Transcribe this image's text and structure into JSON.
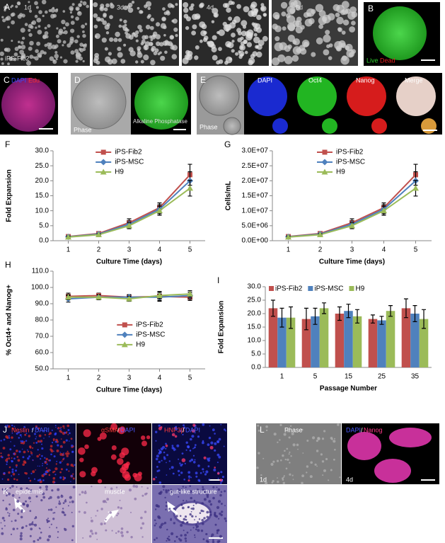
{
  "panels": {
    "A": {
      "label": "A",
      "captions": [
        "1d",
        "3d",
        "4d",
        "5d",
        "iPS-Fib2"
      ]
    },
    "B": {
      "label": "B",
      "captions": [
        "Live",
        "Dead"
      ]
    },
    "C": {
      "label": "C",
      "captions": [
        "DAPI",
        "Edu"
      ]
    },
    "D": {
      "label": "D",
      "captions": [
        "Phase",
        "Alkaline Phosphatase"
      ]
    },
    "E": {
      "label": "E",
      "captions": [
        "Phase",
        "DAPI",
        "Oct4",
        "Nanog",
        "Merge"
      ]
    },
    "J": {
      "label": "J",
      "captions": [
        "Nestin",
        "/",
        "DAPI",
        "αSMA",
        "/",
        "DAPI",
        "HNF3β",
        "/",
        "DAPI"
      ]
    },
    "K": {
      "label": "K",
      "captions": [
        "epidermis",
        "muscle",
        "gut-like structure"
      ]
    },
    "L": {
      "label": "L",
      "captions": [
        "Phase",
        "1d",
        "DAPI",
        "/",
        "Nanog",
        "4d"
      ]
    }
  },
  "chart_data": [
    {
      "type": "line",
      "panel": "F",
      "y_label": "Fold Expansion",
      "x_label": "Culture Time (days)",
      "x": [
        1,
        2,
        3,
        4,
        5
      ],
      "xlim": [
        0.5,
        5.5
      ],
      "xticks": [
        1,
        2,
        3,
        4,
        5
      ],
      "ylim": [
        0,
        30
      ],
      "yticks": [
        {
          "value": 0,
          "label": "0.0"
        },
        {
          "value": 5,
          "label": "5.0"
        },
        {
          "value": 10,
          "label": "10.0"
        },
        {
          "value": 15,
          "label": "15.0"
        },
        {
          "value": 20,
          "label": "20.0"
        },
        {
          "value": 25,
          "label": "25.0"
        },
        {
          "value": 30,
          "label": "30.0"
        }
      ],
      "grid": false,
      "legend": "upper center",
      "series": [
        {
          "name": "iPS-Fib2",
          "color": "#c0504d",
          "marker": "square",
          "values": [
            1.4,
            2.4,
            6.0,
            11.0,
            22.0
          ],
          "errors": [
            0.3,
            0.3,
            1.3,
            1.6,
            3.5
          ]
        },
        {
          "name": "iPS-MSC",
          "color": "#4f81bd",
          "marker": "diamond",
          "values": [
            1.3,
            2.2,
            5.5,
            10.5,
            20.0
          ],
          "errors": [
            0.3,
            0.3,
            1.1,
            1.5,
            3.0
          ]
        },
        {
          "name": "H9",
          "color": "#9bbb59",
          "marker": "triangle",
          "values": [
            1.2,
            2.0,
            5.0,
            10.0,
            17.5
          ],
          "errors": [
            0.3,
            0.3,
            1.0,
            1.5,
            2.6
          ]
        }
      ]
    },
    {
      "type": "line",
      "panel": "G",
      "y_label": "Cells/mL",
      "x_label": "Culture Time (days)",
      "x": [
        1,
        2,
        3,
        4,
        5
      ],
      "xlim": [
        0.5,
        5.5
      ],
      "xticks": [
        1,
        2,
        3,
        4,
        5
      ],
      "ylim": [
        0,
        30000000
      ],
      "yticks": [
        {
          "value": 0,
          "label": "0.0E+00"
        },
        {
          "value": 5000000,
          "label": "5.0E+06"
        },
        {
          "value": 10000000,
          "label": "1.0E+07"
        },
        {
          "value": 15000000,
          "label": "1.5E+07"
        },
        {
          "value": 20000000,
          "label": "2.0E+07"
        },
        {
          "value": 25000000,
          "label": "2.5E+07"
        },
        {
          "value": 30000000,
          "label": "3.0E+07"
        }
      ],
      "grid": false,
      "legend": "upper center",
      "series": [
        {
          "name": "iPS-Fib2",
          "color": "#c0504d",
          "marker": "square",
          "values": [
            1400000,
            2400000,
            6000000,
            11000000,
            22000000
          ],
          "errors": [
            300000,
            300000,
            1300000,
            1600000,
            3500000
          ]
        },
        {
          "name": "iPS-MSC",
          "color": "#4f81bd",
          "marker": "diamond",
          "values": [
            1300000,
            2200000,
            5500000,
            10500000,
            20000000
          ],
          "errors": [
            300000,
            300000,
            1100000,
            1500000,
            3000000
          ]
        },
        {
          "name": "H9",
          "color": "#9bbb59",
          "marker": "triangle",
          "values": [
            1200000,
            2000000,
            5000000,
            10000000,
            17500000
          ],
          "errors": [
            300000,
            300000,
            1000000,
            1500000,
            2600000
          ]
        }
      ]
    },
    {
      "type": "line",
      "panel": "H",
      "y_label": "% Oct4+ and Nanog+",
      "x_label": "Culture Time (days)",
      "x": [
        1,
        2,
        3,
        4,
        5
      ],
      "xlim": [
        0.5,
        5.5
      ],
      "xticks": [
        1,
        2,
        3,
        4,
        5
      ],
      "ylim": [
        50,
        110
      ],
      "yticks": [
        {
          "value": 50,
          "label": "50.0"
        },
        {
          "value": 60,
          "label": "60.0"
        },
        {
          "value": 70,
          "label": "70.0"
        },
        {
          "value": 80,
          "label": "80.0"
        },
        {
          "value": 90,
          "label": "90.0"
        },
        {
          "value": 100,
          "label": "100.0"
        },
        {
          "value": 110,
          "label": "110.0"
        }
      ],
      "grid": false,
      "legend": "center",
      "series": [
        {
          "name": "iPS-Fib2",
          "color": "#c0504d",
          "marker": "square",
          "values": [
            94.5,
            95.0,
            94.0,
            94.5,
            94.0
          ],
          "errors": [
            2.0,
            1.5,
            1.5,
            3.0,
            2.0
          ]
        },
        {
          "name": "iPS-MSC",
          "color": "#4f81bd",
          "marker": "diamond",
          "values": [
            93.0,
            94.0,
            94.0,
            94.0,
            95.0
          ],
          "errors": [
            2.0,
            1.5,
            1.5,
            2.0,
            2.0
          ]
        },
        {
          "name": "H9",
          "color": "#9bbb59",
          "marker": "triangle",
          "values": [
            94.0,
            94.0,
            93.0,
            95.0,
            96.0
          ],
          "errors": [
            1.5,
            1.5,
            1.5,
            2.0,
            2.0
          ]
        }
      ]
    },
    {
      "type": "bar",
      "panel": "I",
      "y_label": "Fold Expansion",
      "x_label": "Passage Number",
      "categories": [
        "1",
        "5",
        "15",
        "25",
        "35"
      ],
      "ylim": [
        0,
        30
      ],
      "yticks": [
        {
          "value": 0,
          "label": "0.0"
        },
        {
          "value": 5,
          "label": "5.0"
        },
        {
          "value": 10,
          "label": "10.0"
        },
        {
          "value": 15,
          "label": "15.0"
        },
        {
          "value": 20,
          "label": "20.0"
        },
        {
          "value": 25,
          "label": "25.0"
        },
        {
          "value": 30,
          "label": "30.0"
        }
      ],
      "grid": false,
      "legend": "upper center",
      "series": [
        {
          "name": "iPS-Fib2",
          "color": "#c0504d",
          "values": [
            22.0,
            18.0,
            20.0,
            18.0,
            22.0
          ],
          "errors": [
            3.0,
            4.0,
            2.5,
            1.5,
            3.5
          ]
        },
        {
          "name": "iPS-MSC",
          "color": "#4f81bd",
          "values": [
            18.5,
            19.0,
            21.0,
            17.5,
            20.0
          ],
          "errors": [
            3.5,
            3.0,
            2.5,
            1.5,
            3.0
          ]
        },
        {
          "name": "H9",
          "color": "#9bbb59",
          "values": [
            18.5,
            22.0,
            19.0,
            21.0,
            18.0
          ],
          "errors": [
            4.0,
            2.0,
            2.5,
            2.0,
            3.5
          ]
        }
      ]
    }
  ]
}
